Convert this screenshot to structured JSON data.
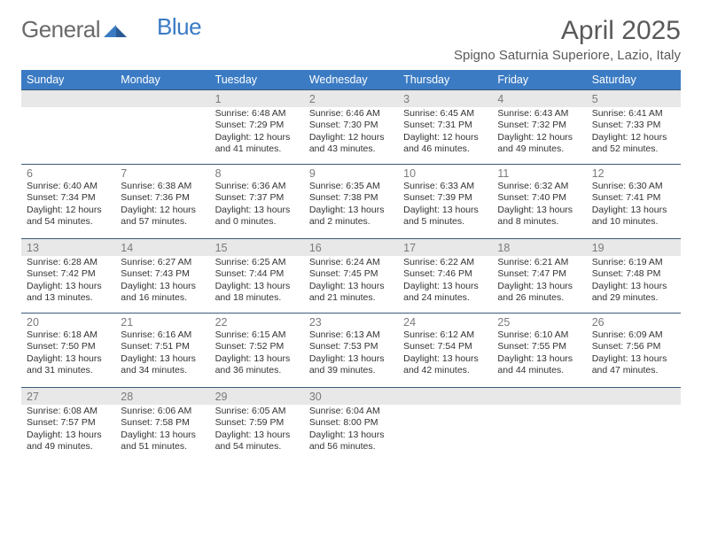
{
  "brand": {
    "part1": "General",
    "part2": "Blue"
  },
  "title": "April 2025",
  "location": "Spigno Saturnia Superiore, Lazio, Italy",
  "styling": {
    "header_bg": "#3b7bc4",
    "header_text_color": "#ffffff",
    "border_color": "#3b5a7a",
    "daynum_color": "#7a7a7a",
    "text_color": "#333333",
    "shaded_bg": "#e8e8e8",
    "background": "#ffffff",
    "title_color": "#5a5a5a",
    "font_family": "Arial",
    "day_header_fontsize": 12.5,
    "daynum_fontsize": 12.5,
    "info_fontsize": 10.5,
    "title_fontsize": 30,
    "location_fontsize": 15,
    "columns": 7,
    "rows": 5
  },
  "day_headers": [
    "Sunday",
    "Monday",
    "Tuesday",
    "Wednesday",
    "Thursday",
    "Friday",
    "Saturday"
  ],
  "shaded_weeks": [
    true,
    false,
    true,
    false,
    true
  ],
  "weeks": [
    [
      null,
      null,
      {
        "n": "1",
        "sr": "Sunrise: 6:48 AM",
        "ss": "Sunset: 7:29 PM",
        "dl": "Daylight: 12 hours and 41 minutes."
      },
      {
        "n": "2",
        "sr": "Sunrise: 6:46 AM",
        "ss": "Sunset: 7:30 PM",
        "dl": "Daylight: 12 hours and 43 minutes."
      },
      {
        "n": "3",
        "sr": "Sunrise: 6:45 AM",
        "ss": "Sunset: 7:31 PM",
        "dl": "Daylight: 12 hours and 46 minutes."
      },
      {
        "n": "4",
        "sr": "Sunrise: 6:43 AM",
        "ss": "Sunset: 7:32 PM",
        "dl": "Daylight: 12 hours and 49 minutes."
      },
      {
        "n": "5",
        "sr": "Sunrise: 6:41 AM",
        "ss": "Sunset: 7:33 PM",
        "dl": "Daylight: 12 hours and 52 minutes."
      }
    ],
    [
      {
        "n": "6",
        "sr": "Sunrise: 6:40 AM",
        "ss": "Sunset: 7:34 PM",
        "dl": "Daylight: 12 hours and 54 minutes."
      },
      {
        "n": "7",
        "sr": "Sunrise: 6:38 AM",
        "ss": "Sunset: 7:36 PM",
        "dl": "Daylight: 12 hours and 57 minutes."
      },
      {
        "n": "8",
        "sr": "Sunrise: 6:36 AM",
        "ss": "Sunset: 7:37 PM",
        "dl": "Daylight: 13 hours and 0 minutes."
      },
      {
        "n": "9",
        "sr": "Sunrise: 6:35 AM",
        "ss": "Sunset: 7:38 PM",
        "dl": "Daylight: 13 hours and 2 minutes."
      },
      {
        "n": "10",
        "sr": "Sunrise: 6:33 AM",
        "ss": "Sunset: 7:39 PM",
        "dl": "Daylight: 13 hours and 5 minutes."
      },
      {
        "n": "11",
        "sr": "Sunrise: 6:32 AM",
        "ss": "Sunset: 7:40 PM",
        "dl": "Daylight: 13 hours and 8 minutes."
      },
      {
        "n": "12",
        "sr": "Sunrise: 6:30 AM",
        "ss": "Sunset: 7:41 PM",
        "dl": "Daylight: 13 hours and 10 minutes."
      }
    ],
    [
      {
        "n": "13",
        "sr": "Sunrise: 6:28 AM",
        "ss": "Sunset: 7:42 PM",
        "dl": "Daylight: 13 hours and 13 minutes."
      },
      {
        "n": "14",
        "sr": "Sunrise: 6:27 AM",
        "ss": "Sunset: 7:43 PM",
        "dl": "Daylight: 13 hours and 16 minutes."
      },
      {
        "n": "15",
        "sr": "Sunrise: 6:25 AM",
        "ss": "Sunset: 7:44 PM",
        "dl": "Daylight: 13 hours and 18 minutes."
      },
      {
        "n": "16",
        "sr": "Sunrise: 6:24 AM",
        "ss": "Sunset: 7:45 PM",
        "dl": "Daylight: 13 hours and 21 minutes."
      },
      {
        "n": "17",
        "sr": "Sunrise: 6:22 AM",
        "ss": "Sunset: 7:46 PM",
        "dl": "Daylight: 13 hours and 24 minutes."
      },
      {
        "n": "18",
        "sr": "Sunrise: 6:21 AM",
        "ss": "Sunset: 7:47 PM",
        "dl": "Daylight: 13 hours and 26 minutes."
      },
      {
        "n": "19",
        "sr": "Sunrise: 6:19 AM",
        "ss": "Sunset: 7:48 PM",
        "dl": "Daylight: 13 hours and 29 minutes."
      }
    ],
    [
      {
        "n": "20",
        "sr": "Sunrise: 6:18 AM",
        "ss": "Sunset: 7:50 PM",
        "dl": "Daylight: 13 hours and 31 minutes."
      },
      {
        "n": "21",
        "sr": "Sunrise: 6:16 AM",
        "ss": "Sunset: 7:51 PM",
        "dl": "Daylight: 13 hours and 34 minutes."
      },
      {
        "n": "22",
        "sr": "Sunrise: 6:15 AM",
        "ss": "Sunset: 7:52 PM",
        "dl": "Daylight: 13 hours and 36 minutes."
      },
      {
        "n": "23",
        "sr": "Sunrise: 6:13 AM",
        "ss": "Sunset: 7:53 PM",
        "dl": "Daylight: 13 hours and 39 minutes."
      },
      {
        "n": "24",
        "sr": "Sunrise: 6:12 AM",
        "ss": "Sunset: 7:54 PM",
        "dl": "Daylight: 13 hours and 42 minutes."
      },
      {
        "n": "25",
        "sr": "Sunrise: 6:10 AM",
        "ss": "Sunset: 7:55 PM",
        "dl": "Daylight: 13 hours and 44 minutes."
      },
      {
        "n": "26",
        "sr": "Sunrise: 6:09 AM",
        "ss": "Sunset: 7:56 PM",
        "dl": "Daylight: 13 hours and 47 minutes."
      }
    ],
    [
      {
        "n": "27",
        "sr": "Sunrise: 6:08 AM",
        "ss": "Sunset: 7:57 PM",
        "dl": "Daylight: 13 hours and 49 minutes."
      },
      {
        "n": "28",
        "sr": "Sunrise: 6:06 AM",
        "ss": "Sunset: 7:58 PM",
        "dl": "Daylight: 13 hours and 51 minutes."
      },
      {
        "n": "29",
        "sr": "Sunrise: 6:05 AM",
        "ss": "Sunset: 7:59 PM",
        "dl": "Daylight: 13 hours and 54 minutes."
      },
      {
        "n": "30",
        "sr": "Sunrise: 6:04 AM",
        "ss": "Sunset: 8:00 PM",
        "dl": "Daylight: 13 hours and 56 minutes."
      },
      null,
      null,
      null
    ]
  ]
}
